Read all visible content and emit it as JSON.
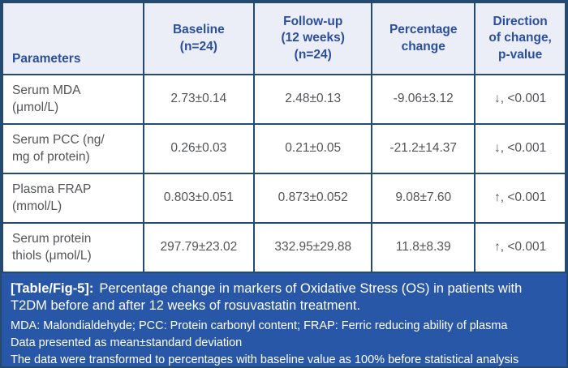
{
  "table": {
    "headers": [
      "Parameters",
      "Baseline\n(n=24)",
      "Follow-up\n(12 weeks)\n(n=24)",
      "Percentage\nchange",
      "Direction\nof change,\np-value"
    ],
    "rows": [
      {
        "param": "Serum MDA\n(μmol/L)",
        "baseline": "2.73±0.14",
        "followup": "2.48±0.13",
        "pct_change": "-9.06±3.12",
        "direction": "↓, <0.001"
      },
      {
        "param": "Serum PCC (ng/\nmg of protein)",
        "baseline": "0.26±0.03",
        "followup": "0.21±0.05",
        "pct_change": "-21.2±14.37",
        "direction": "↓, <0.001"
      },
      {
        "param": "Plasma FRAP\n(mmol/L)",
        "baseline": "0.803±0.051",
        "followup": "0.873±0.052",
        "pct_change": "9.08±7.60",
        "direction": "↑, <0.001"
      },
      {
        "param": "Serum protein\nthiols (μmol/L)",
        "baseline": "297.79±23.02",
        "followup": "332.95±29.88",
        "pct_change": "11.8±8.39",
        "direction": "↑, <0.001"
      }
    ]
  },
  "footer": {
    "caption_label": "[Table/Fig-5]:",
    "caption_text": "Percentage change in markers of Oxidative Stress (OS) in patients with T2DM before and after 12 weeks of rosuvastatin treatment.",
    "notes": [
      "MDA: Malondialdehyde; PCC: Protein carbonyl content; FRAP: Ferric reducing ability of plasma",
      "Data presented as mean±standard deviation",
      "The data were transformed to percentages with baseline value as 100% before statistical analysis"
    ]
  },
  "colors": {
    "border": "#26496e",
    "header_bg": "#eceef7",
    "header_text": "#2b4f9f",
    "body_text": "#525457",
    "footer_bg": "#2857a8",
    "footer_text": "#ffffff"
  }
}
